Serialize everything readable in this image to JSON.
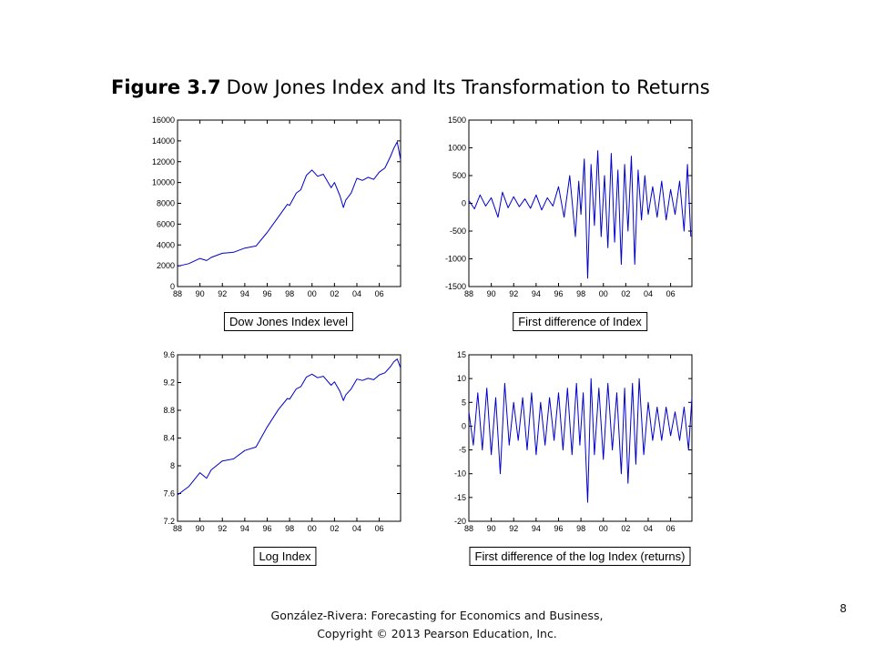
{
  "title": {
    "figure_number": "Figure 3.7",
    "text": "Dow Jones Index and Its Transformation to Returns"
  },
  "footer": {
    "line1": "González-Rivera: Forecasting for Economics and Business,",
    "line2": "Copyright © 2013 Pearson Education, Inc."
  },
  "page_number": "8",
  "series_color": "#0000cc",
  "chart_data": [
    {
      "type": "line",
      "title": "Dow Jones Index level",
      "x_tick_labels": [
        "88",
        "90",
        "92",
        "94",
        "96",
        "98",
        "00",
        "02",
        "04",
        "06"
      ],
      "y_ticks": [
        0,
        2000,
        4000,
        6000,
        8000,
        10000,
        12000,
        14000,
        16000
      ],
      "ylim": [
        0,
        16000
      ],
      "xlim": [
        1988.0,
        2007.9
      ],
      "grid": false,
      "series": [
        {
          "x": [
            1988.0,
            1989.0,
            1990.0,
            1990.6,
            1991.0,
            1992.0,
            1993.0,
            1994.0,
            1995.0,
            1996.0,
            1997.0,
            1997.8,
            1998.0,
            1998.6,
            1999.0,
            1999.5,
            2000.0,
            2000.5,
            2001.0,
            2001.7,
            2002.0,
            2002.5,
            2002.8,
            2003.0,
            2003.5,
            2004.0,
            2004.5,
            2005.0,
            2005.5,
            2006.0,
            2006.5,
            2007.0,
            2007.3,
            2007.6,
            2007.9
          ],
          "y": [
            1950,
            2200,
            2700,
            2500,
            2800,
            3200,
            3300,
            3700,
            3900,
            5200,
            6700,
            7900,
            7800,
            9000,
            9300,
            10700,
            11200,
            10600,
            10800,
            9500,
            10000,
            8700,
            7600,
            8300,
            9000,
            10400,
            10200,
            10500,
            10300,
            11000,
            11400,
            12500,
            13300,
            13900,
            12200
          ]
        }
      ]
    },
    {
      "type": "line",
      "title": "First difference of Index",
      "x_tick_labels": [
        "88",
        "90",
        "92",
        "94",
        "96",
        "98",
        "00",
        "02",
        "04",
        "06"
      ],
      "y_ticks": [
        -1500,
        -1000,
        -500,
        0,
        500,
        1000,
        1500
      ],
      "ylim": [
        -1500,
        1500
      ],
      "xlim": [
        1988.0,
        2007.9
      ],
      "grid": false,
      "series": [
        {
          "x": [
            1988.0,
            1988.5,
            1989.0,
            1989.5,
            1990.0,
            1990.6,
            1991.0,
            1991.5,
            1992.0,
            1992.5,
            1993.0,
            1993.5,
            1994.0,
            1994.5,
            1995.0,
            1995.5,
            1996.0,
            1996.5,
            1997.0,
            1997.5,
            1997.8,
            1998.0,
            1998.3,
            1998.6,
            1998.9,
            1999.2,
            1999.5,
            1999.8,
            2000.1,
            2000.4,
            2000.7,
            2001.0,
            2001.3,
            2001.6,
            2001.9,
            2002.2,
            2002.5,
            2002.8,
            2003.1,
            2003.4,
            2003.7,
            2004.0,
            2004.4,
            2004.8,
            2005.2,
            2005.6,
            2006.0,
            2006.4,
            2006.8,
            2007.2,
            2007.5,
            2007.8
          ],
          "y": [
            50,
            -100,
            150,
            -50,
            100,
            -250,
            200,
            -80,
            120,
            -60,
            80,
            -90,
            150,
            -120,
            100,
            -50,
            300,
            -250,
            500,
            -600,
            400,
            -200,
            800,
            -1350,
            700,
            -400,
            950,
            -600,
            500,
            -800,
            900,
            -700,
            600,
            -1100,
            700,
            -500,
            850,
            -1100,
            600,
            -300,
            500,
            -200,
            300,
            -250,
            400,
            -300,
            250,
            -200,
            400,
            -500,
            700,
            -600
          ]
        }
      ]
    },
    {
      "type": "line",
      "title": "Log Index",
      "x_tick_labels": [
        "88",
        "90",
        "92",
        "94",
        "96",
        "98",
        "00",
        "02",
        "04",
        "06"
      ],
      "y_ticks": [
        7.2,
        7.6,
        8.0,
        8.4,
        8.8,
        9.2,
        9.6
      ],
      "ylim": [
        7.2,
        9.6
      ],
      "xlim": [
        1988.0,
        2007.9
      ],
      "grid": false,
      "series": [
        {
          "x": [
            1988.0,
            1989.0,
            1990.0,
            1990.6,
            1991.0,
            1992.0,
            1993.0,
            1994.0,
            1995.0,
            1996.0,
            1997.0,
            1997.8,
            1998.0,
            1998.6,
            1999.0,
            1999.5,
            2000.0,
            2000.5,
            2001.0,
            2001.7,
            2002.0,
            2002.5,
            2002.8,
            2003.0,
            2003.5,
            2004.0,
            2004.5,
            2005.0,
            2005.5,
            2006.0,
            2006.5,
            2007.0,
            2007.3,
            2007.6,
            2007.9
          ],
          "y": [
            7.58,
            7.7,
            7.9,
            7.82,
            7.94,
            8.07,
            8.1,
            8.22,
            8.27,
            8.56,
            8.81,
            8.97,
            8.96,
            9.11,
            9.14,
            9.28,
            9.32,
            9.27,
            9.29,
            9.16,
            9.21,
            9.07,
            8.94,
            9.02,
            9.11,
            9.25,
            9.23,
            9.26,
            9.24,
            9.31,
            9.34,
            9.43,
            9.5,
            9.54,
            9.41
          ]
        }
      ]
    },
    {
      "type": "line",
      "title": "First difference of the log Index (returns)",
      "x_tick_labels": [
        "88",
        "90",
        "92",
        "94",
        "96",
        "98",
        "00",
        "02",
        "04",
        "06"
      ],
      "y_ticks": [
        -20,
        -15,
        -10,
        -5,
        0,
        5,
        10,
        15
      ],
      "ylim": [
        -20,
        15
      ],
      "xlim": [
        1988.0,
        2007.9
      ],
      "grid": false,
      "series": [
        {
          "x": [
            1988.0,
            1988.4,
            1988.8,
            1989.2,
            1989.6,
            1990.0,
            1990.4,
            1990.8,
            1991.2,
            1991.6,
            1992.0,
            1992.4,
            1992.8,
            1993.2,
            1993.6,
            1994.0,
            1994.4,
            1994.8,
            1995.2,
            1995.6,
            1996.0,
            1996.4,
            1996.8,
            1997.2,
            1997.6,
            1997.9,
            1998.2,
            1998.6,
            1998.9,
            1999.2,
            1999.6,
            2000.0,
            2000.4,
            2000.8,
            2001.2,
            2001.6,
            2001.9,
            2002.2,
            2002.6,
            2002.9,
            2003.2,
            2003.6,
            2004.0,
            2004.4,
            2004.8,
            2005.2,
            2005.6,
            2006.0,
            2006.4,
            2006.8,
            2007.2,
            2007.6,
            2007.9
          ],
          "y": [
            3,
            -4,
            7,
            -5,
            8,
            -6,
            6,
            -10,
            9,
            -4,
            5,
            -3,
            6,
            -5,
            7,
            -6,
            5,
            -4,
            6,
            -3,
            7,
            -5,
            8,
            -6,
            9,
            -4,
            7,
            -16,
            10,
            -6,
            8,
            -7,
            9,
            -5,
            7,
            -10,
            8,
            -12,
            9,
            -8,
            10,
            -6,
            5,
            -3,
            4,
            -3,
            4,
            -2,
            3,
            -3,
            4,
            -5,
            6
          ]
        }
      ]
    }
  ]
}
